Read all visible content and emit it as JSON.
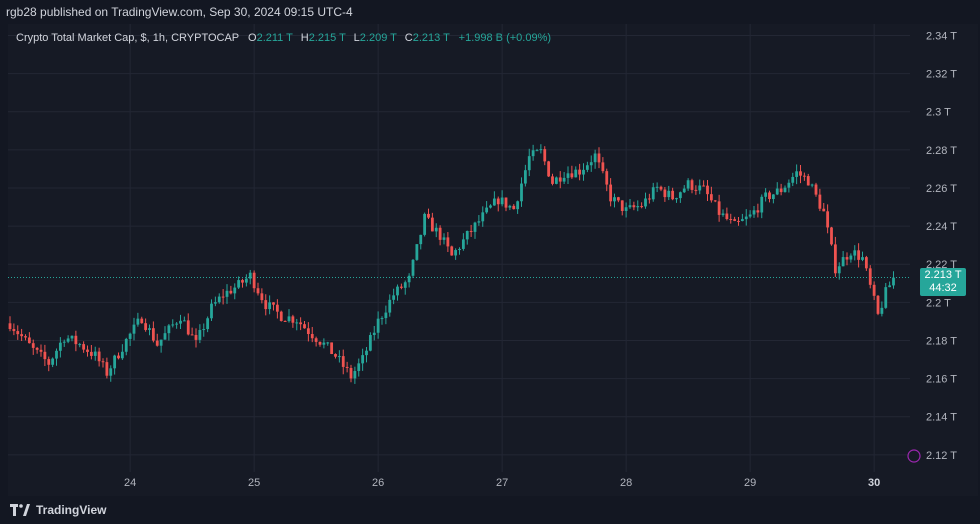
{
  "header": {
    "published_line": "rgb28 published on TradingView.com, Sep 30, 2024 09:15 UTC-4"
  },
  "legend": {
    "symbol": "Crypto Total Market Cap, $, 1h, CRYPTOCAP",
    "o_key": "O",
    "o_val": "2.211 T",
    "h_key": "H",
    "h_val": "2.215 T",
    "l_key": "L",
    "l_val": "2.209 T",
    "c_key": "C",
    "c_val": "2.213 T",
    "change": "+1.998 B (+0.09%)"
  },
  "price_tag": {
    "price": "2.213 T",
    "countdown": "44:32"
  },
  "footer": {
    "brand": "TradingView"
  },
  "colors": {
    "up": "#26a69a",
    "down": "#ef5350",
    "background": "#161a25",
    "grid": "#232734",
    "text": "#b2b5be"
  },
  "chart_data": {
    "type": "candlestick",
    "y_ticks": [
      "2.34 T",
      "2.32 T",
      "2.3 T",
      "2.28 T",
      "2.26 T",
      "2.24 T",
      "2.22 T",
      "2.2 T",
      "2.18 T",
      "2.16 T",
      "2.14 T",
      "2.12 T"
    ],
    "y_tick_values": [
      2.34,
      2.32,
      2.3,
      2.28,
      2.26,
      2.24,
      2.22,
      2.2,
      2.18,
      2.16,
      2.14,
      2.12
    ],
    "ylim": [
      2.111,
      2.346
    ],
    "x_ticks": [
      "24",
      "25",
      "26",
      "27",
      "28",
      "29",
      "30"
    ],
    "last_price": 2.213,
    "anchors": [
      [
        0,
        2.189
      ],
      [
        6,
        2.175
      ],
      [
        10,
        2.168
      ],
      [
        14,
        2.182
      ],
      [
        18,
        2.178
      ],
      [
        22,
        2.172
      ],
      [
        25,
        2.163
      ],
      [
        30,
        2.18
      ],
      [
        34,
        2.192
      ],
      [
        38,
        2.178
      ],
      [
        44,
        2.193
      ],
      [
        48,
        2.178
      ],
      [
        52,
        2.197
      ],
      [
        55,
        2.204
      ],
      [
        59,
        2.209
      ],
      [
        62,
        2.214
      ],
      [
        66,
        2.199
      ],
      [
        70,
        2.193
      ],
      [
        74,
        2.191
      ],
      [
        77,
        2.185
      ],
      [
        81,
        2.178
      ],
      [
        84,
        2.172
      ],
      [
        88,
        2.161
      ],
      [
        91,
        2.17
      ],
      [
        95,
        2.19
      ],
      [
        99,
        2.204
      ],
      [
        103,
        2.212
      ],
      [
        107,
        2.244
      ],
      [
        111,
        2.235
      ],
      [
        114,
        2.224
      ],
      [
        118,
        2.235
      ],
      [
        122,
        2.245
      ],
      [
        126,
        2.254
      ],
      [
        130,
        2.249
      ],
      [
        134,
        2.276
      ],
      [
        137,
        2.279
      ],
      [
        140,
        2.263
      ],
      [
        143,
        2.268
      ],
      [
        147,
        2.269
      ],
      [
        151,
        2.277
      ],
      [
        155,
        2.255
      ],
      [
        159,
        2.248
      ],
      [
        163,
        2.251
      ],
      [
        167,
        2.26
      ],
      [
        171,
        2.255
      ],
      [
        175,
        2.262
      ],
      [
        179,
        2.259
      ],
      [
        183,
        2.247
      ],
      [
        187,
        2.24
      ],
      [
        191,
        2.245
      ],
      [
        195,
        2.255
      ],
      [
        199,
        2.259
      ],
      [
        203,
        2.268
      ],
      [
        206,
        2.264
      ],
      [
        210,
        2.247
      ],
      [
        213,
        2.218
      ],
      [
        217,
        2.227
      ],
      [
        220,
        2.223
      ],
      [
        224,
        2.193
      ],
      [
        226,
        2.205
      ],
      [
        228,
        2.213
      ]
    ]
  }
}
